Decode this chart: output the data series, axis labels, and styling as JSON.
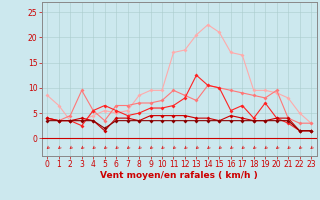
{
  "title": "",
  "xlabel": "Vent moyen/en rafales ( km/h )",
  "bg_color": "#cce8ee",
  "grid_color": "#aacccc",
  "x_values": [
    0,
    1,
    2,
    3,
    4,
    5,
    6,
    7,
    8,
    9,
    10,
    11,
    12,
    13,
    14,
    15,
    16,
    17,
    18,
    19,
    20,
    21,
    22,
    23
  ],
  "series": [
    {
      "color": "#ffaaaa",
      "y": [
        8.5,
        6.5,
        3.5,
        3.5,
        4.5,
        5.5,
        5.0,
        5.5,
        8.5,
        9.5,
        9.5,
        17.0,
        17.5,
        20.5,
        22.5,
        21.0,
        17.0,
        16.5,
        9.5,
        9.5,
        9.0,
        8.0,
        5.0,
        3.0
      ],
      "marker": "D",
      "ms": 2.0,
      "lw": 0.8
    },
    {
      "color": "#ff7777",
      "y": [
        4.0,
        3.5,
        4.5,
        9.5,
        5.5,
        3.5,
        6.5,
        6.5,
        7.0,
        7.0,
        7.5,
        9.5,
        8.5,
        7.5,
        10.5,
        10.0,
        9.5,
        9.0,
        8.5,
        8.0,
        9.5,
        4.0,
        3.0,
        3.0
      ],
      "marker": "D",
      "ms": 2.0,
      "lw": 0.8
    },
    {
      "color": "#ff2222",
      "y": [
        4.0,
        3.5,
        3.5,
        2.5,
        5.5,
        6.5,
        5.5,
        4.5,
        5.0,
        6.0,
        6.0,
        6.5,
        8.0,
        12.5,
        10.5,
        10.0,
        5.5,
        6.5,
        4.0,
        7.0,
        4.0,
        3.0,
        1.5,
        1.5
      ],
      "marker": "D",
      "ms": 2.0,
      "lw": 0.8
    },
    {
      "color": "#cc0000",
      "y": [
        4.0,
        3.5,
        3.5,
        4.0,
        3.5,
        1.5,
        4.0,
        4.0,
        3.5,
        4.5,
        4.5,
        4.5,
        4.5,
        4.0,
        4.0,
        3.5,
        4.5,
        4.0,
        3.5,
        3.5,
        4.0,
        4.0,
        1.5,
        1.5
      ],
      "marker": "D",
      "ms": 2.0,
      "lw": 0.8
    },
    {
      "color": "#880000",
      "y": [
        3.5,
        3.5,
        3.5,
        3.5,
        3.5,
        2.0,
        3.5,
        3.5,
        3.5,
        3.5,
        3.5,
        3.5,
        3.5,
        3.5,
        3.5,
        3.5,
        3.5,
        3.5,
        3.5,
        3.5,
        3.5,
        3.5,
        1.5,
        1.5
      ],
      "marker": "D",
      "ms": 2.0,
      "lw": 0.8
    }
  ],
  "arrow_color": "#dd2222",
  "ylim": [
    -3.5,
    27
  ],
  "xlim": [
    -0.5,
    23.5
  ],
  "yticks": [
    0,
    5,
    10,
    15,
    20,
    25
  ],
  "xticks": [
    0,
    1,
    2,
    3,
    4,
    5,
    6,
    7,
    8,
    9,
    10,
    11,
    12,
    13,
    14,
    15,
    16,
    17,
    18,
    19,
    20,
    21,
    22,
    23
  ],
  "tick_fontsize": 5.5,
  "xlabel_fontsize": 6.5
}
